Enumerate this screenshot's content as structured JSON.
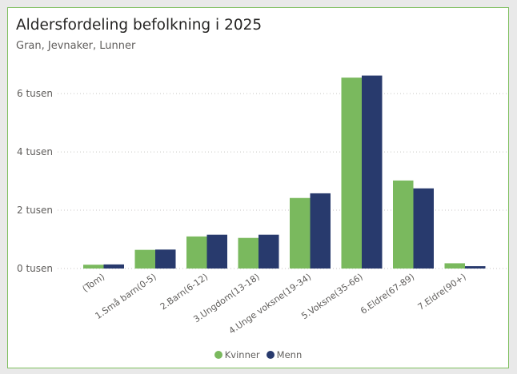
{
  "colors": {
    "kvinner": "#7ab95e",
    "menn": "#283a6d",
    "grid": "#c8c6c4",
    "text": "#605e5c"
  },
  "chart_data": {
    "type": "bar",
    "title": "Aldersfordeling befolkning i 2025",
    "subtitle": "Gran, Jevnaker, Lunner",
    "categories": [
      "(Tom)",
      "1.Små barn(0-5)",
      "2.Barn(6-12)",
      "3.Ungdom(13-18)",
      "4.Unge voksne(19-34)",
      "5.Voksne(35-66)",
      "6.Eldre(67-89)",
      "7.Eldre(90+)"
    ],
    "series": [
      {
        "name": "Kvinner",
        "values": [
          130,
          640,
          1100,
          1050,
          2420,
          6550,
          3020,
          180
        ]
      },
      {
        "name": "Menn",
        "values": [
          140,
          650,
          1160,
          1160,
          2580,
          6620,
          2750,
          80
        ]
      }
    ],
    "yticks": [
      {
        "value": 0,
        "label": "0 tusen"
      },
      {
        "value": 2000,
        "label": "2 tusen"
      },
      {
        "value": 4000,
        "label": "4 tusen"
      },
      {
        "value": 6000,
        "label": "6 tusen"
      }
    ],
    "ylim": [
      0,
      6800
    ],
    "grid": true,
    "legend_position": "bottom"
  }
}
